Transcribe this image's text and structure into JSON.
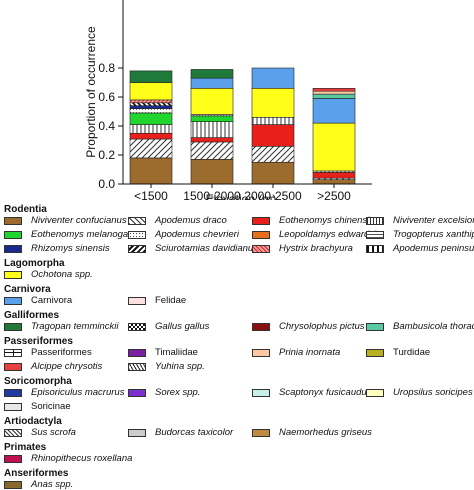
{
  "chart_data": {
    "type": "bar",
    "stacked": true,
    "categories": [
      "<1500",
      "1500-2000",
      "2000-2500",
      ">2500"
    ],
    "xlabel": "Elevation (m)",
    "ylabel": "Proportion of occurrence",
    "ylim": [
      0,
      0.8
    ],
    "yticks": [
      "0.0",
      "0.2",
      "0.4",
      "0.6",
      "0.8"
    ],
    "series": [
      {
        "name": "Niviventer confucianus",
        "color": "#9c6b2e",
        "pattern": "solid",
        "values": [
          0.18,
          0.17,
          0.15,
          0.03
        ]
      },
      {
        "name": "Apodemus draco",
        "color": "#ffffff",
        "pattern": "diag",
        "values": [
          0.13,
          0.12,
          0.11,
          0.01
        ]
      },
      {
        "name": "Eothenomys chinensis",
        "color": "#e8201c",
        "pattern": "solid",
        "values": [
          0.04,
          0.03,
          0.15,
          0.04
        ]
      },
      {
        "name": "Niviventer excelsior",
        "color": "#ffffff",
        "pattern": "vlines",
        "values": [
          0.06,
          0.11,
          0.05,
          0.01
        ]
      },
      {
        "name": "Eothenomys melanogaster",
        "color": "#22d42e",
        "pattern": "solid",
        "values": [
          0.08,
          0.04,
          0.0,
          0.0
        ]
      },
      {
        "name": "Apodemus chevrieri",
        "color": "#ffffff",
        "pattern": "dots",
        "values": [
          0.03,
          0.01,
          0.0,
          0.0
        ]
      },
      {
        "name": "Rhizomys sinensis",
        "color": "#1a2a8c",
        "pattern": "solid",
        "values": [
          0.02,
          0.0,
          0.0,
          0.0
        ]
      },
      {
        "name": "Sciurotamias davidianus",
        "color": "#ffffff",
        "pattern": "rdiag",
        "values": [
          0.02,
          0.0,
          0.0,
          0.0
        ]
      },
      {
        "name": "Hystrix brachyura",
        "color": "#ff9a9a",
        "pattern": "hatch",
        "values": [
          0.02,
          0.0,
          0.0,
          0.0
        ]
      },
      {
        "name": "Ochotona spp.",
        "color": "#ffff1a",
        "pattern": "solid",
        "values": [
          0.12,
          0.18,
          0.2,
          0.33
        ]
      },
      {
        "name": "Carnivora",
        "color": "#5aa0ea",
        "pattern": "solid",
        "values": [
          0.0,
          0.07,
          0.14,
          0.17
        ]
      },
      {
        "name": "Tragopan temminckii",
        "color": "#1f7a3a",
        "pattern": "solid",
        "values": [
          0.08,
          0.06,
          0.0,
          0.0
        ]
      },
      {
        "name": "Bambusicola thoracicus",
        "color": "#5ac8a0",
        "pattern": "solid",
        "values": [
          0.0,
          0.0,
          0.0,
          0.03
        ]
      },
      {
        "name": "Prinia inornata",
        "color": "#ffc8a0",
        "pattern": "solid",
        "values": [
          0.0,
          0.0,
          0.0,
          0.02
        ]
      },
      {
        "name": "Alcippe chrysotis",
        "color": "#e84040",
        "pattern": "solid",
        "values": [
          0.0,
          0.0,
          0.0,
          0.02
        ]
      }
    ]
  },
  "legend": {
    "groups": [
      {
        "title": "Rodentia",
        "items": [
          {
            "label": "Niviventer confucianus",
            "color": "#9c6b2e",
            "pattern": "solid",
            "italic": true
          },
          {
            "label": "Apodemus draco",
            "color": "#ffffff",
            "pattern": "diag",
            "italic": true
          },
          {
            "label": "Eothenomys chinensis",
            "color": "#e8201c",
            "pattern": "solid",
            "italic": true
          },
          {
            "label": "Niviventer excelsior",
            "color": "#ffffff",
            "pattern": "vlines",
            "italic": true
          },
          {
            "label": "Eothenomys melanogaster",
            "color": "#22d42e",
            "pattern": "solid",
            "italic": true
          },
          {
            "label": "Apodemus chevrieri",
            "color": "#ffffff",
            "pattern": "dots",
            "italic": true
          },
          {
            "label": "Leopoldamys edwardsi",
            "color": "#e8701c",
            "pattern": "solid",
            "italic": true
          },
          {
            "label": "Trogopterus xanthipes",
            "color": "#ffffff",
            "pattern": "hlines",
            "italic": true
          },
          {
            "label": "Rhizomys sinensis",
            "color": "#1a2a8c",
            "pattern": "solid",
            "italic": true
          },
          {
            "label": "Sciurotamias davidianus",
            "color": "#ffffff",
            "pattern": "rdiag",
            "italic": true
          },
          {
            "label": "Hystrix brachyura",
            "color": "#ff9a9a",
            "pattern": "hatch",
            "italic": true
          },
          {
            "label": "Apodemus peninsulae",
            "color": "#ffffff",
            "pattern": "bars",
            "italic": true
          }
        ]
      },
      {
        "title": "Lagomorpha",
        "items": [
          {
            "label": "Ochotona spp.",
            "color": "#ffff1a",
            "pattern": "solid",
            "italic": true
          }
        ]
      },
      {
        "title": "Carnivora",
        "items": [
          {
            "label": "Carnivora",
            "color": "#5aa0ea",
            "pattern": "solid",
            "italic": false
          },
          {
            "label": "Felidae",
            "color": "#fde0e0",
            "pattern": "solid",
            "italic": false
          }
        ]
      },
      {
        "title": "Galliformes",
        "items": [
          {
            "label": "Tragopan temminckii",
            "color": "#1f7a3a",
            "pattern": "solid",
            "italic": true
          },
          {
            "label": "Gallus gallus",
            "color": "#ffffff",
            "pattern": "checker",
            "italic": true
          },
          {
            "label": "Chrysolophus pictus",
            "color": "#8a1010",
            "pattern": "solid",
            "italic": true
          },
          {
            "label": "Bambusicola thoracicus",
            "color": "#5ac8a0",
            "pattern": "solid",
            "italic": true
          }
        ]
      },
      {
        "title": "Passeriformes",
        "items": [
          {
            "label": "Passeriformes",
            "color": "#ffffff",
            "pattern": "cross",
            "italic": false
          },
          {
            "label": "Timaliidae",
            "color": "#7a1fa0",
            "pattern": "solid",
            "italic": false
          },
          {
            "label": "Prinia inornata",
            "color": "#ffc8a0",
            "pattern": "solid",
            "italic": true
          },
          {
            "label": "Turdidae",
            "color": "#b8b020",
            "pattern": "solid",
            "italic": false
          },
          {
            "label": "Alcippe chrysotis",
            "color": "#e84040",
            "pattern": "solid",
            "italic": true
          },
          {
            "label": "Yuhina spp.",
            "color": "#ffffff",
            "pattern": "zigzag",
            "italic": true
          }
        ]
      },
      {
        "title": "Soricomorpha",
        "items": [
          {
            "label": "Episoriculus macrurus",
            "color": "#1f3aa0",
            "pattern": "solid",
            "italic": true
          },
          {
            "label": "Sorex spp.",
            "color": "#7a30d0",
            "pattern": "solid",
            "italic": true
          },
          {
            "label": "Scaptonyx fusicaudus",
            "color": "#c8f0e8",
            "pattern": "solid",
            "italic": true
          },
          {
            "label": "Uropsilus soricipes",
            "color": "#ffffc0",
            "pattern": "solid",
            "italic": true
          },
          {
            "label": "Soricinae",
            "color": "#e8e8e8",
            "pattern": "solid",
            "italic": false
          }
        ]
      },
      {
        "title": "Artiodactyla",
        "items": [
          {
            "label": "Sus scrofa",
            "color": "#ffffff",
            "pattern": "diagdense",
            "italic": true
          },
          {
            "label": "Budorcas taxicolor",
            "color": "#cccccc",
            "pattern": "solid",
            "italic": true
          },
          {
            "label": "Naemorhedus griseus",
            "color": "#c08a40",
            "pattern": "solid",
            "italic": true
          }
        ]
      },
      {
        "title": "Primates",
        "items": [
          {
            "label": "Rhinopithecus roxellana",
            "color": "#c01050",
            "pattern": "solid",
            "italic": true
          }
        ]
      },
      {
        "title": "Anseriformes",
        "items": [
          {
            "label": "Anas spp.",
            "color": "#8a6a2a",
            "pattern": "solid",
            "italic": true
          }
        ]
      }
    ]
  }
}
